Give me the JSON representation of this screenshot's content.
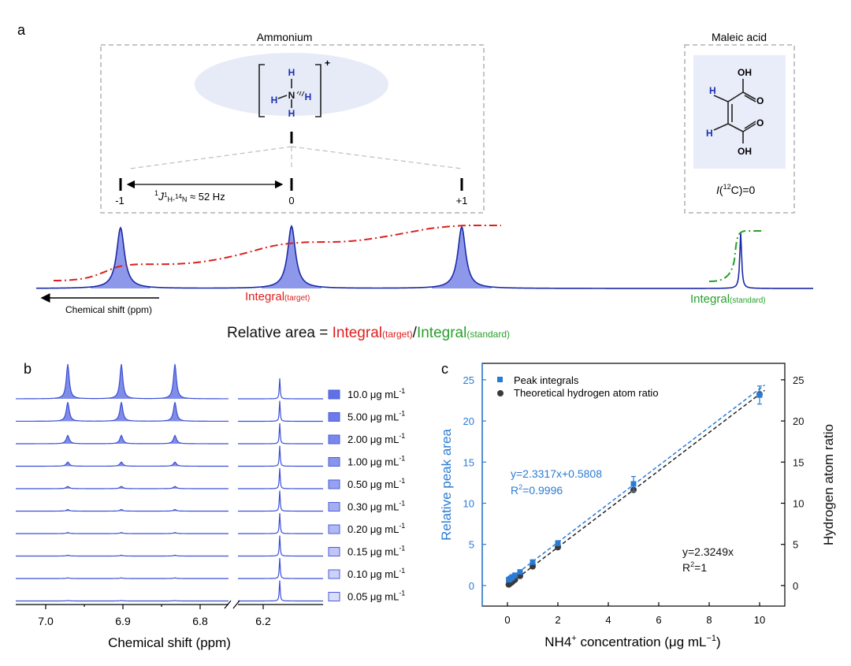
{
  "panel_a": {
    "label": "a",
    "ammonium_title": "Ammonium",
    "maleic_title": "Maleic acid",
    "charge": "+",
    "atom_N": "N",
    "atom_H": "H",
    "peak_labels": [
      "-1",
      "0",
      "+1"
    ],
    "coupling_sup1": "1",
    "coupling_J": "J",
    "coupling_sub_pre": "1",
    "coupling_sub_H": "H-",
    "coupling_sub_mid": "14",
    "coupling_sub_N": "N",
    "coupling_value": " ≈ 52 Hz",
    "oh_label": "OH",
    "o_label": "O",
    "spin_I": "I",
    "spin_paren_open": "(",
    "spin_sup": "12",
    "spin_rest": "C)=0",
    "axis_arrow_label": "Chemical shift (ppm)",
    "integral_target_main": "Integral",
    "integral_target_sub": "(target)",
    "integral_standard_main": "Integral",
    "integral_standard_sub": "(standard)",
    "equation_prefix": "Relative area = ",
    "equation_t_main": "Integral",
    "equation_t_sub": "(target)",
    "equation_slash": "/",
    "equation_s_main": "Integral",
    "equation_s_sub": "(standard)"
  },
  "panel_b": {
    "label": "b",
    "unit_text": " μg mL",
    "unit_sup": "-1",
    "concentrations": [
      "10.0",
      "5.00",
      "2.00",
      "1.00",
      "0.50",
      "0.30",
      "0.20",
      "0.15",
      "0.10",
      "0.05"
    ],
    "triplet_heights": [
      1.0,
      0.55,
      0.24,
      0.12,
      0.065,
      0.045,
      0.03,
      0.024,
      0.018,
      0.013
    ],
    "ticks_left": [
      "7.0",
      "6.9",
      "6.8"
    ],
    "ticks_right": [
      "6.2"
    ],
    "xlabel": "Chemical shift (ppm)",
    "colors": {
      "line": "#3b4fd6",
      "fill": "#7f8ce8"
    }
  },
  "panel_c": {
    "label": "c",
    "legend_peak": "Peak integrals",
    "legend_theory": "Theoretical hydrogen atom ratio",
    "eq_fit_line1": "y=2.3317x+0.5808",
    "eq_fit_r2_prefix": "R",
    "eq_fit_r2_sup": "2",
    "eq_fit_r2_val": "=0.9996",
    "eq_theory_line1": "y=2.3249x",
    "eq_theory_r2_prefix": "R",
    "eq_theory_r2_sup": "2",
    "eq_theory_r2_val": "=1",
    "ylabel_left": "Relative peak area",
    "ylabel_right": "Hydrogen atom ratio",
    "xlabel_main": "NH4",
    "xlabel_sup1": "+",
    "xlabel_rest": " concentration (μg mL",
    "xlabel_sup2": "−1",
    "xlabel_end": ")",
    "colors": {
      "blue": "#2a7bd4",
      "dark": "#3a3a3a"
    }
  },
  "chart_data": [
    {
      "type": "scatter",
      "series": [
        {
          "name": "Peak integrals",
          "x": [
            0.05,
            0.1,
            0.15,
            0.2,
            0.3,
            0.5,
            1.0,
            2.0,
            5.0,
            10.0
          ],
          "y": [
            0.7,
            0.8,
            0.92,
            1.05,
            1.25,
            1.65,
            2.85,
            5.15,
            12.35,
            23.15
          ],
          "error": [
            0.1,
            0.1,
            0.1,
            0.1,
            0.1,
            0.15,
            0.2,
            0.3,
            0.9,
            1.1
          ]
        },
        {
          "name": "Theoretical hydrogen atom ratio",
          "x": [
            0.05,
            0.1,
            0.15,
            0.2,
            0.3,
            0.5,
            1.0,
            2.0,
            5.0,
            10.0
          ],
          "y": [
            0.12,
            0.23,
            0.35,
            0.46,
            0.7,
            1.16,
            2.32,
            4.65,
            11.62,
            23.25
          ]
        }
      ],
      "fits": [
        {
          "slope": 2.3317,
          "intercept": 0.5808
        },
        {
          "slope": 2.3249,
          "intercept": 0
        }
      ],
      "xlabel": "NH4+ concentration (μg mL−1)",
      "ylabel": "Relative peak area",
      "y2label": "Hydrogen atom ratio",
      "xlim": [
        -1,
        11
      ],
      "ylim": [
        -2.5,
        27
      ],
      "xticks": [
        "0",
        "2",
        "4",
        "6",
        "8",
        "10"
      ],
      "yticks": [
        "0",
        "5",
        "10",
        "15",
        "20",
        "25"
      ],
      "y2ticks": [
        "0",
        "5",
        "10",
        "15",
        "20",
        "25"
      ],
      "legend": "top-left"
    }
  ]
}
